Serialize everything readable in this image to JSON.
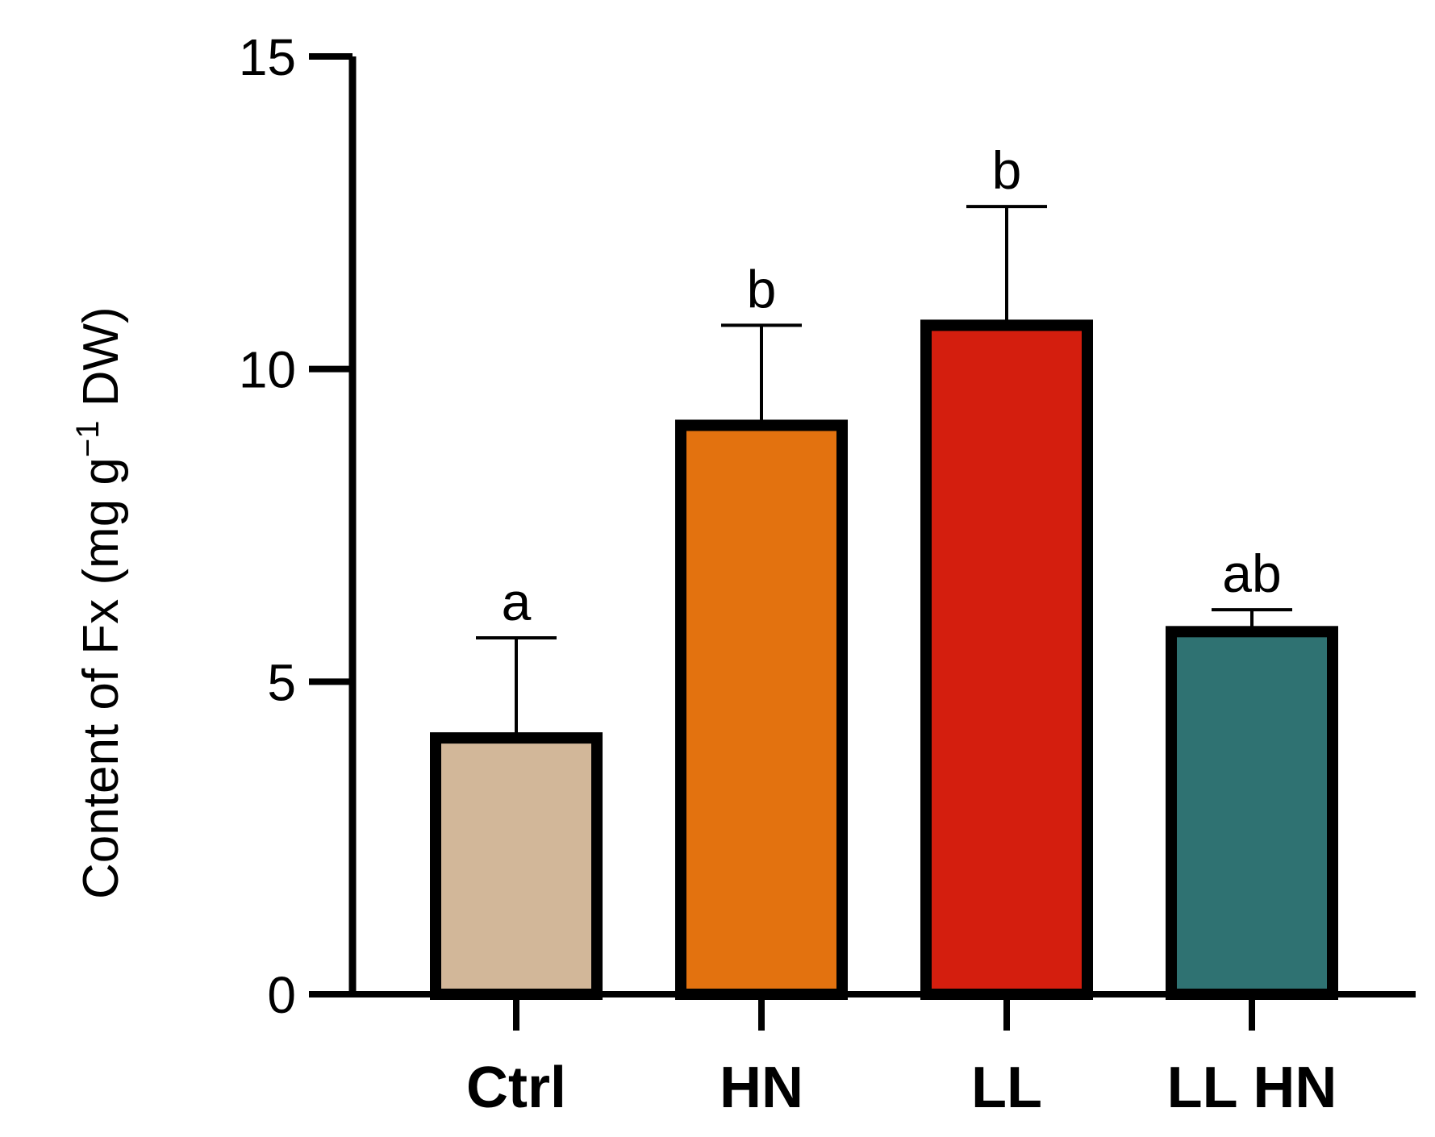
{
  "chart_data": {
    "type": "bar",
    "title": "",
    "xlabel": "",
    "ylabel": {
      "prefix": "Content of Fx (mg g",
      "superscript": "−1",
      "suffix": " DW)"
    },
    "ylim": [
      0,
      15
    ],
    "yticks": [
      "0",
      "5",
      "10",
      "15"
    ],
    "grid": false,
    "categories": [
      "Ctrl",
      "HN",
      "LL",
      "LL HN"
    ],
    "values": [
      4.1,
      9.1,
      10.7,
      5.8
    ],
    "errors": [
      1.6,
      1.6,
      1.9,
      0.35
    ],
    "significance_letters": [
      "a",
      "b",
      "b",
      "ab"
    ],
    "colors": [
      "#D2B799",
      "#E3720F",
      "#D41E0E",
      "#2F7272"
    ]
  }
}
